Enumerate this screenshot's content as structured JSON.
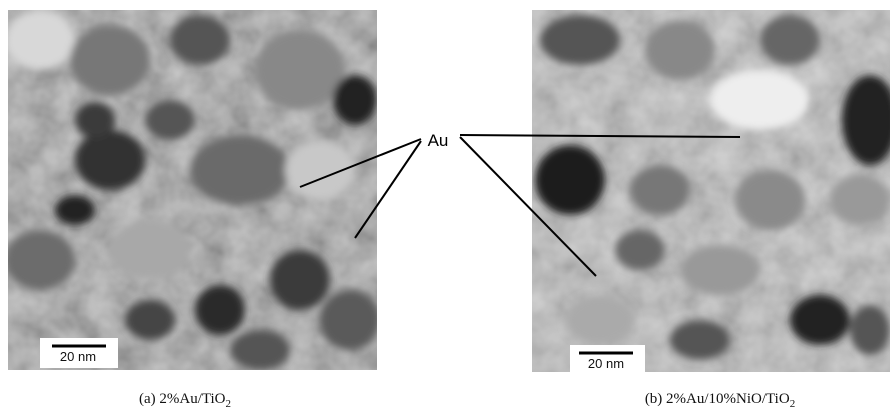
{
  "figure": {
    "panels": [
      {
        "scale_bar": "20 nm",
        "caption": {
          "main": "(a) 2%Au/TiO",
          "sub": "2"
        }
      },
      {
        "scale_bar": "20 nm",
        "caption": {
          "main": "(b) 2%Au/10%NiO/TiO",
          "sub": "2"
        }
      }
    ],
    "annotation": "Au"
  }
}
